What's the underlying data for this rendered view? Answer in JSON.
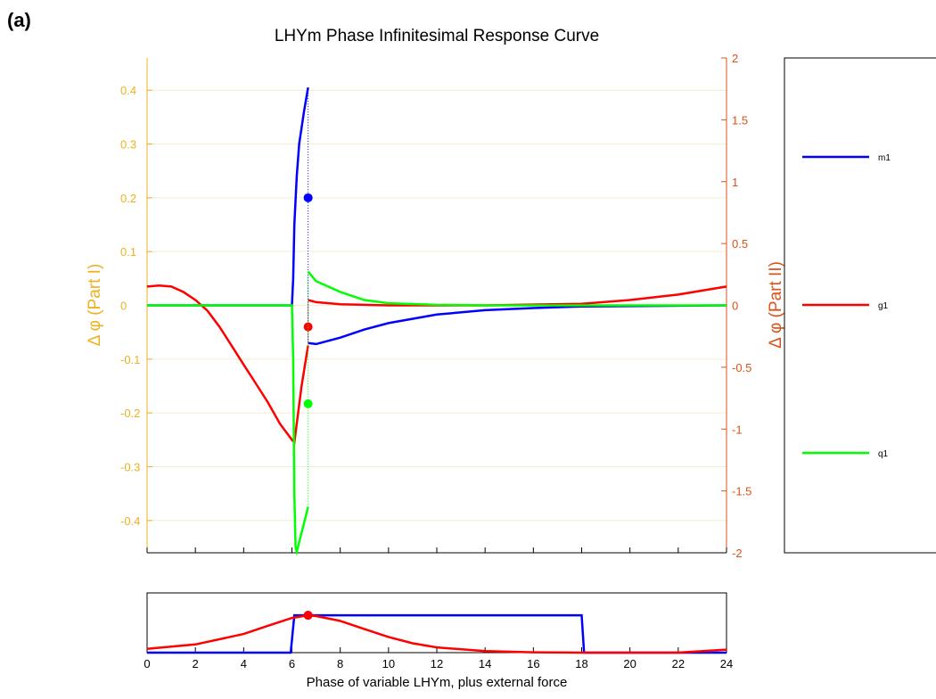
{
  "chart_data": [
    {
      "type": "line",
      "label": "(a)",
      "title": "LHYm Phase Infinitesimal Response Curve",
      "ylabel": "Δ φ (Part I)",
      "y2label": "Δ φ (Part II)",
      "xlim": [
        0,
        24
      ],
      "xticks": [
        0,
        2,
        4,
        6,
        8,
        10,
        12,
        14,
        16,
        18,
        20,
        22,
        24
      ],
      "ylim": [
        -0.46,
        0.46
      ],
      "yticks": [
        -0.4,
        -0.3,
        -0.2,
        -0.1,
        0,
        0.1,
        0.2,
        0.3,
        0.4
      ],
      "y2lim": [
        -2,
        2
      ],
      "y2ticks": [
        -2,
        -1.5,
        -1,
        -0.5,
        0,
        0.5,
        1,
        1.5,
        2
      ],
      "grid": true,
      "series": [
        {
          "name": "m1",
          "color": "#0000ff",
          "x": [
            0,
            6,
            6.05,
            6.1,
            6.2,
            6.3,
            6.5,
            6.67,
            null,
            6.67,
            7,
            8,
            9,
            10,
            12,
            14,
            16,
            18,
            24
          ],
          "values": [
            0,
            0,
            0.05,
            0.15,
            0.24,
            0.3,
            0.36,
            0.405,
            null,
            -0.07,
            -0.072,
            -0.06,
            -0.045,
            -0.033,
            -0.017,
            -0.009,
            -0.005,
            -0.002,
            0
          ],
          "marker": {
            "x": 6.67,
            "value": 0.2
          }
        },
        {
          "name": "g1",
          "color": "#ff0000",
          "x": [
            0,
            0.5,
            1,
            1.5,
            2,
            2.5,
            3,
            3.5,
            4,
            4.5,
            5,
            5.5,
            6,
            6.1,
            6.2,
            6.4,
            6.67,
            null,
            6.67,
            7,
            8,
            10,
            14,
            18,
            20,
            22,
            24
          ],
          "values": [
            0.035,
            0.037,
            0.035,
            0.025,
            0.01,
            -0.01,
            -0.04,
            -0.075,
            -0.11,
            -0.145,
            -0.18,
            -0.22,
            -0.25,
            -0.255,
            -0.22,
            -0.15,
            -0.075,
            null,
            0.01,
            0.006,
            0.002,
            0,
            0,
            0.003,
            0.01,
            0.02,
            0.035
          ],
          "marker": {
            "x": 6.67,
            "value": -0.04
          }
        },
        {
          "name": "q1",
          "color": "#00ff00",
          "x": [
            0,
            6,
            6.05,
            6.1,
            6.15,
            6.2,
            6.67,
            null,
            6.67,
            7,
            8,
            9,
            10,
            12,
            14,
            24
          ],
          "values": [
            0,
            0,
            -0.1,
            -0.35,
            -0.45,
            -0.458,
            -0.375,
            null,
            0.063,
            0.045,
            0.025,
            0.01,
            0.004,
            0.001,
            0,
            0
          ],
          "marker": {
            "x": 6.67,
            "value": -0.183
          }
        }
      ]
    },
    {
      "type": "line",
      "xlabel": "Phase of variable LHYm, plus external force",
      "xlim": [
        0,
        24
      ],
      "xticks": [
        0,
        2,
        4,
        6,
        8,
        10,
        12,
        14,
        16,
        18,
        20,
        22,
        24
      ],
      "ylim": [
        0,
        1.6
      ],
      "series": [
        {
          "color": "#0000ff",
          "x": [
            0,
            5.95,
            6.1,
            18,
            18.1,
            24
          ],
          "values": [
            0,
            0,
            1,
            1,
            0,
            0
          ],
          "marker": {
            "x": 6.67,
            "value": 1
          }
        },
        {
          "color": "#ff0000",
          "x": [
            0,
            2,
            4,
            5,
            6,
            6.67,
            7,
            8,
            9,
            10,
            11,
            12,
            14,
            16,
            18,
            22,
            24
          ],
          "values": [
            0.1,
            0.22,
            0.5,
            0.72,
            0.93,
            1,
            0.98,
            0.85,
            0.63,
            0.42,
            0.25,
            0.14,
            0.04,
            0.01,
            0,
            0,
            0.08
          ],
          "marker": {
            "x": 6.67,
            "value": 1
          }
        }
      ]
    }
  ]
}
